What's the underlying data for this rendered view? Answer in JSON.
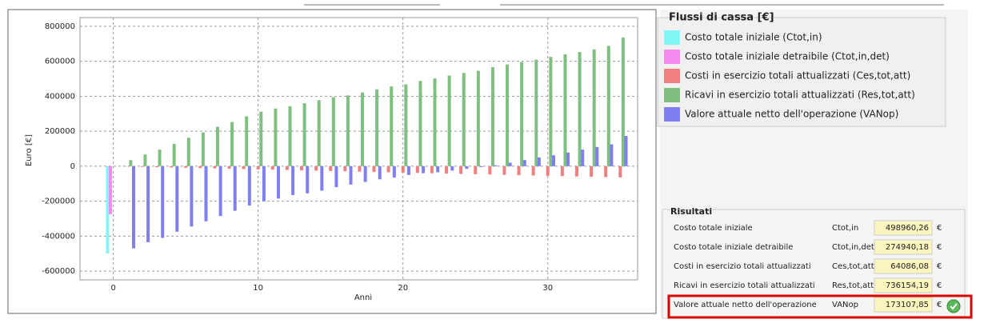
{
  "chart_data": {
    "type": "bar",
    "legend_title": "Flussi di cassa [€]",
    "xlabel": "Anni",
    "ylabel": "Euro [€]",
    "x": [
      0,
      1,
      2,
      3,
      4,
      5,
      6,
      7,
      8,
      9,
      10,
      11,
      12,
      13,
      14,
      15,
      16,
      17,
      18,
      19,
      20,
      21,
      22,
      23,
      24,
      25,
      26,
      27,
      28,
      29,
      30,
      31,
      32,
      33,
      34,
      35
    ],
    "xlim": [
      -2.3,
      36.2
    ],
    "xticks": [
      0,
      10,
      20,
      30
    ],
    "ylim": [
      -650000,
      850000
    ],
    "yticks": [
      -600000,
      -400000,
      -200000,
      0,
      200000,
      400000,
      600000,
      800000
    ],
    "grid": true,
    "series": [
      {
        "name": "Costo totale iniziale (Ctot,in)",
        "color": "#7ff5f5",
        "values": [
          -498960,
          null,
          null,
          null,
          null,
          null,
          null,
          null,
          null,
          null,
          null,
          null,
          null,
          null,
          null,
          null,
          null,
          null,
          null,
          null,
          null,
          null,
          null,
          null,
          null,
          null,
          null,
          null,
          null,
          null,
          null,
          null,
          null,
          null,
          null,
          null
        ]
      },
      {
        "name": "Costo totale iniziale detraibile (Ctot,in,det)",
        "color": "#f58af0",
        "values": [
          -274940,
          null,
          null,
          null,
          null,
          null,
          null,
          null,
          null,
          null,
          null,
          null,
          null,
          null,
          null,
          null,
          null,
          null,
          null,
          null,
          null,
          null,
          null,
          null,
          null,
          null,
          null,
          null,
          null,
          null,
          null,
          null,
          null,
          null,
          null,
          null
        ]
      },
      {
        "name": "Costi in esercizio totali attualizzati (Ces,tot,att)",
        "color": "#f08080",
        "values": [
          null,
          -1800,
          -3700,
          -5500,
          -7300,
          -9200,
          -11000,
          -12800,
          -14600,
          -16500,
          -18300,
          -20100,
          -22000,
          -23800,
          -25600,
          -27500,
          -29300,
          -31100,
          -33000,
          -34800,
          -36600,
          -38500,
          -40300,
          -42100,
          -44000,
          -45800,
          -47600,
          -49400,
          -51300,
          -53100,
          -54900,
          -56800,
          -58600,
          -60400,
          -62300,
          -64086
        ]
      },
      {
        "name": "Ricavi in esercizio totali attualizzati (Res,tot,att)",
        "color": "#7fbf7f",
        "values": [
          null,
          35000,
          67000,
          95000,
          128000,
          163000,
          193000,
          225000,
          253000,
          285000,
          312000,
          330000,
          343000,
          360000,
          378000,
          395000,
          405000,
          422000,
          440000,
          456000,
          468000,
          488000,
          502000,
          518000,
          533000,
          546000,
          566000,
          582000,
          596000,
          610000,
          625000,
          640000,
          653000,
          668000,
          688000,
          736154
        ]
      },
      {
        "name": "Valore attuale netto dell'operazione (VANop)",
        "color": "#7f7fef",
        "values": [
          null,
          -470000,
          -435000,
          -410000,
          -375000,
          -345000,
          -315000,
          -285000,
          -255000,
          -225000,
          -200000,
          -185000,
          -165000,
          -155000,
          -140000,
          -120000,
          -105000,
          -90000,
          -75000,
          -65000,
          -50000,
          -40000,
          -35000,
          -25000,
          -15000,
          -5000,
          5000,
          20000,
          35000,
          50000,
          62000,
          78000,
          95000,
          110000,
          125000,
          173108
        ]
      }
    ]
  },
  "results": {
    "title": "Risultati",
    "rows": [
      [
        "Costo totale iniziale",
        "Ctot,in",
        "498960,26",
        "€"
      ],
      [
        "Costo totale iniziale detraibile",
        "Ctot,in,det",
        "274940,18",
        "€"
      ],
      [
        "Costi in esercizio totali attualizzati",
        "Ces,tot,att",
        "64086,08",
        "€"
      ],
      [
        "Ricavi in esercizio totali attualizzati",
        "Res,tot,att",
        "736154,19",
        "€"
      ],
      [
        "Valore attuale netto dell'operazione",
        "VANop",
        "173107,85",
        "€"
      ]
    ]
  }
}
